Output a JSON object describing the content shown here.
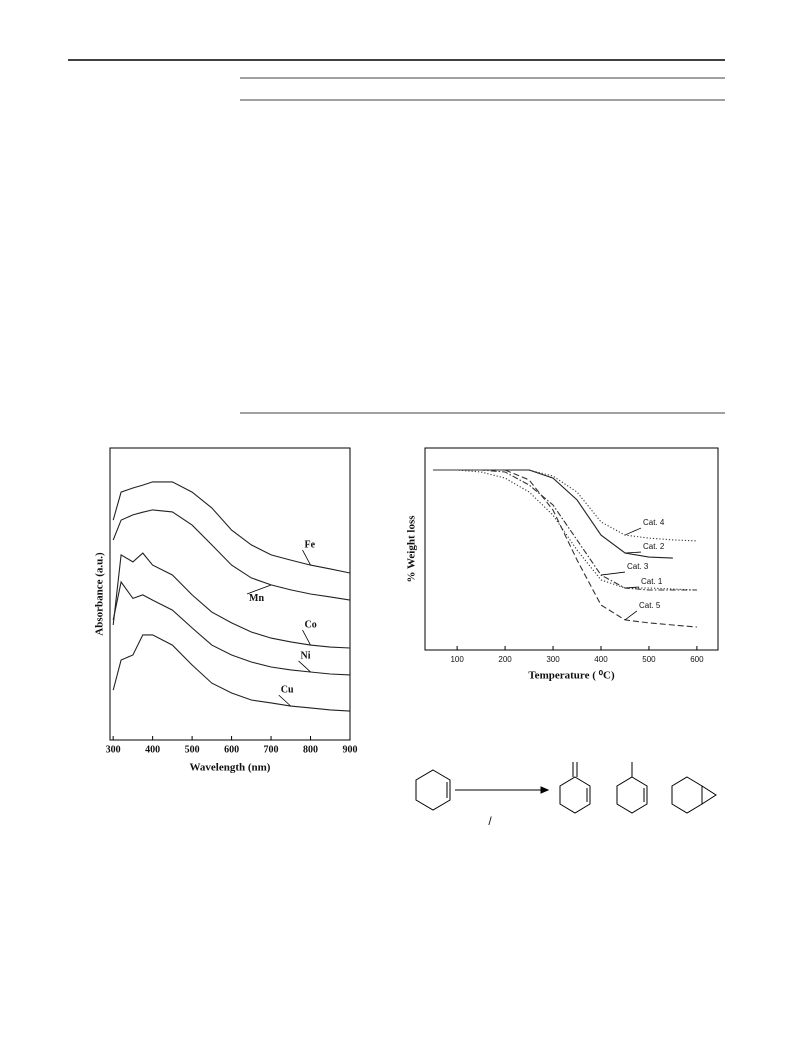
{
  "chart_data": [
    {
      "type": "line",
      "xlabel": "Wavelength (nm)",
      "ylabel": "Absorbance (a.u.)",
      "x": [
        300,
        320,
        350,
        375,
        400,
        450,
        500,
        550,
        600,
        650,
        700,
        750,
        800,
        850,
        900
      ],
      "xlim": [
        292,
        900
      ],
      "xticks": [
        300,
        400,
        500,
        600,
        700,
        800,
        900
      ],
      "ylim": [
        0,
        100
      ],
      "series": [
        {
          "name": "Fe",
          "color": "#222222",
          "style": "solid",
          "values": [
            75.3,
            84.9,
            86.3,
            87.3,
            88.4,
            88.4,
            84.9,
            79.5,
            71.9,
            66.8,
            63.4,
            61.6,
            59.9,
            58.6,
            57.2
          ]
        },
        {
          "name": "Mn",
          "color": "#222222",
          "style": "solid",
          "values": [
            68.5,
            75.3,
            77.1,
            78.0,
            78.8,
            78.1,
            73.6,
            66.8,
            59.9,
            55.5,
            53.1,
            51.4,
            50.0,
            49.0,
            47.9
          ]
        },
        {
          "name": "Co",
          "color": "#222222",
          "style": "solid",
          "values": [
            39.4,
            63.4,
            61.0,
            64.0,
            59.9,
            56.5,
            49.7,
            43.8,
            40.1,
            37.0,
            34.9,
            33.6,
            32.5,
            31.8,
            31.5
          ]
        },
        {
          "name": "Ni",
          "color": "#222222",
          "style": "solid",
          "values": [
            41.1,
            54.1,
            48.5,
            49.7,
            47.9,
            44.5,
            38.4,
            32.5,
            29.1,
            26.7,
            25.0,
            24.0,
            23.3,
            22.6,
            22.3
          ]
        },
        {
          "name": "Cu",
          "color": "#222222",
          "style": "solid",
          "values": [
            17.1,
            27.4,
            29.1,
            36.0,
            36.0,
            32.5,
            25.7,
            19.5,
            16.1,
            13.7,
            12.7,
            11.6,
            11.0,
            10.3,
            9.9
          ]
        }
      ]
    },
    {
      "type": "line",
      "xlabel": "Temperature ( ⁰C)",
      "ylabel": "% Weight loss",
      "x": [
        50,
        100,
        150,
        200,
        250,
        300,
        350,
        400,
        450,
        500,
        550,
        600
      ],
      "xlim": [
        33,
        644
      ],
      "xticks": [
        100,
        200,
        300,
        400,
        500,
        600
      ],
      "ylim": [
        0,
        100
      ],
      "series": [
        {
          "name": "Cat. 4",
          "color": "#333333",
          "style": "dotted",
          "values": [
            89.1,
            89.1,
            89.1,
            89.1,
            89.1,
            86.1,
            78.2,
            63.4,
            56.9,
            55.4,
            54.5,
            54.0
          ]
        },
        {
          "name": "Cat. 2",
          "color": "#222222",
          "style": "solid",
          "values": [
            89.1,
            89.1,
            89.1,
            89.1,
            89.1,
            85.1,
            74.3,
            56.9,
            48.0,
            46.0,
            45.5,
            null
          ]
        },
        {
          "name": "Cat. 3",
          "color": "#333333",
          "style": "dashdot",
          "values": [
            89.1,
            89.1,
            89.1,
            88.1,
            81.7,
            71.8,
            54.5,
            37.1,
            30.7,
            29.7,
            29.7,
            29.7
          ]
        },
        {
          "name": "Cat. 1",
          "color": "#333333",
          "style": "dotted",
          "values": [
            89.1,
            89.1,
            88.1,
            85.1,
            78.2,
            66.8,
            49.5,
            34.7,
            30.7,
            30.7,
            30.2,
            29.7
          ]
        },
        {
          "name": "Cat. 5",
          "color": "#333333",
          "style": "dash",
          "values": [
            89.1,
            89.1,
            89.1,
            89.1,
            84.2,
            69.3,
            44.6,
            22.3,
            14.9,
            13.4,
            12.4,
            11.4
          ]
        }
      ]
    }
  ],
  "scheme": {
    "arrow_label": "/"
  }
}
